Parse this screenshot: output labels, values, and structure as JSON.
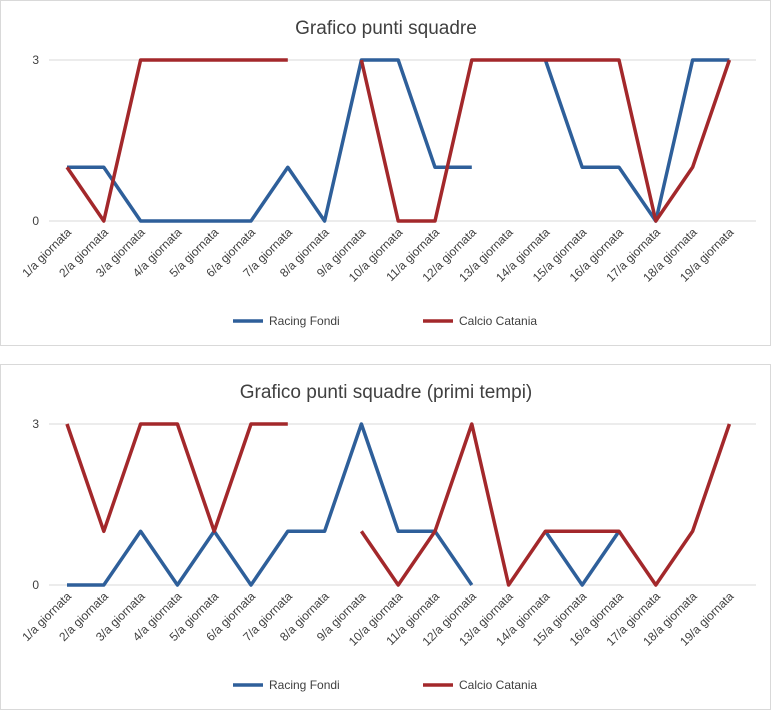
{
  "chart_data": [
    {
      "type": "line",
      "title": "Grafico punti squadre",
      "categories": [
        "1/a giornata",
        "2/a giornata",
        "3/a giornata",
        "4/a giornata",
        "5/a giornata",
        "6/a giornata",
        "7/a giornata",
        "8/a giornata",
        "9/a giornata",
        "10/a giornata",
        "11/a giornata",
        "12/a giornata",
        "13/a giornata",
        "14/a giornata",
        "15/a giornata",
        "16/a giornata",
        "17/a giornata",
        "18/a giornata",
        "19/a giornata"
      ],
      "y_ticks": [
        "0",
        "3"
      ],
      "ylim": [
        0,
        3
      ],
      "legend_position": "bottom",
      "series": [
        {
          "name": "Racing Fondi",
          "color": "#2e5f9a",
          "values": [
            1,
            1,
            0,
            0,
            0,
            0,
            1,
            0,
            3,
            3,
            1,
            1,
            null,
            3,
            1,
            1,
            0,
            3,
            3
          ]
        },
        {
          "name": "Calcio Catania",
          "color": "#a3282b",
          "values": [
            1,
            0,
            3,
            3,
            3,
            3,
            3,
            null,
            3,
            0,
            0,
            3,
            3,
            3,
            3,
            3,
            0,
            1,
            3
          ]
        }
      ]
    },
    {
      "type": "line",
      "title": "Grafico punti squadre (primi tempi)",
      "categories": [
        "1/a giornata",
        "2/a giornata",
        "3/a giornata",
        "4/a giornata",
        "5/a giornata",
        "6/a giornata",
        "7/a giornata",
        "8/a giornata",
        "9/a giornata",
        "10/a giornata",
        "11/a giornata",
        "12/a giornata",
        "13/a giornata",
        "14/a giornata",
        "15/a giornata",
        "16/a giornata",
        "17/a giornata",
        "18/a giornata",
        "19/a giornata"
      ],
      "y_ticks": [
        "0",
        "3"
      ],
      "ylim": [
        0,
        3
      ],
      "legend_position": "bottom",
      "series": [
        {
          "name": "Racing Fondi",
          "color": "#2e5f9a",
          "values": [
            0,
            0,
            1,
            0,
            1,
            0,
            1,
            1,
            3,
            1,
            1,
            0,
            null,
            1,
            0,
            1,
            null,
            null,
            null
          ]
        },
        {
          "name": "Calcio Catania",
          "color": "#a3282b",
          "values": [
            3,
            1,
            3,
            3,
            1,
            3,
            3,
            null,
            1,
            0,
            1,
            3,
            0,
            1,
            1,
            1,
            0,
            1,
            3
          ]
        }
      ]
    }
  ]
}
